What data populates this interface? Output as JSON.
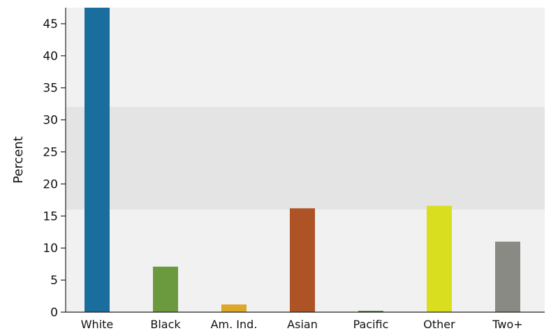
{
  "chart_data": {
    "type": "bar",
    "categories": [
      "White",
      "Black",
      "Am. Ind.",
      "Asian",
      "Pacific",
      "Other",
      "Two+"
    ],
    "values": [
      48.0,
      7.1,
      1.2,
      16.2,
      0.2,
      16.6,
      11.0
    ],
    "colors": [
      "#1a6e9e",
      "#6b9a3e",
      "#dea72a",
      "#ad5326",
      "#3e7a2a",
      "#d9de1f",
      "#8a8a84"
    ],
    "ylabel": "Percent",
    "xlabel": "",
    "ylim": [
      0,
      47.5
    ],
    "yticks": [
      0,
      5,
      10,
      15,
      20,
      25,
      30,
      35,
      40,
      45
    ],
    "highlight_band": [
      16,
      32
    ],
    "grid": false
  }
}
